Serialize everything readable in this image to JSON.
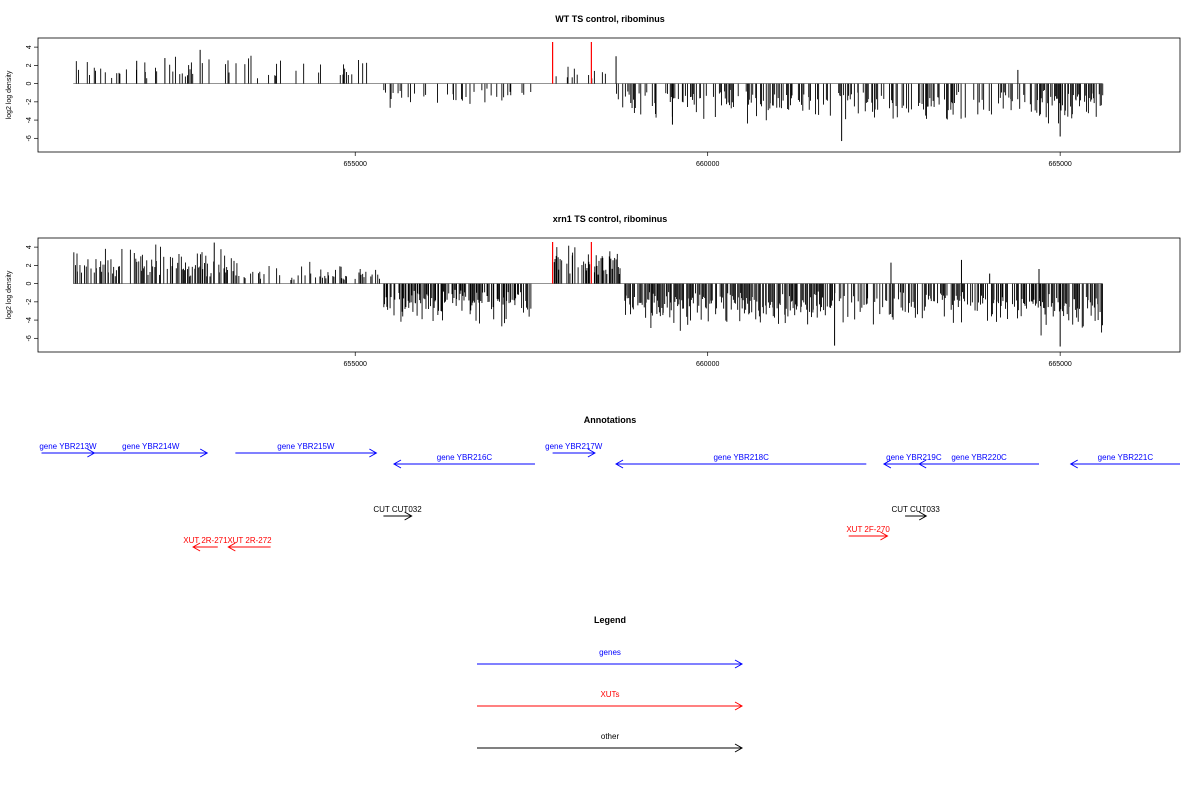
{
  "colors": {
    "gene": "#0000ff",
    "xut": "#ff0000",
    "other": "#000000",
    "marker": "#ff0000"
  },
  "chart_data": [
    {
      "type": "bar",
      "title": "WT TS control, ribominus",
      "ylabel": "log2 log density",
      "ylim": [
        -7.5,
        5
      ],
      "yticks": [
        4,
        2,
        0,
        -2,
        -4,
        -6
      ],
      "xlim": [
        650500,
        666700
      ],
      "xticks": [
        655000,
        660000,
        665000
      ],
      "markers": [
        657800,
        658350
      ],
      "generated_profile": {
        "seed": 11,
        "segments": [
          {
            "from": 651000,
            "to": 655300,
            "sign": 1,
            "density": 0.45,
            "max": 3.3
          },
          {
            "from": 655300,
            "to": 657500,
            "sign": -1,
            "density": 0.55,
            "max": 2.7
          },
          {
            "from": 657800,
            "to": 658700,
            "sign": 1,
            "density": 0.35,
            "max": 2.4
          },
          {
            "from": 658700,
            "to": 664700,
            "sign": -1,
            "density": 0.85,
            "max": 4.6
          },
          {
            "from": 664700,
            "to": 665600,
            "sign": -1,
            "density": 1.6,
            "max": 4.8
          }
        ],
        "spikes": [
          [
            651900,
            2.5
          ],
          [
            652300,
            2.8
          ],
          [
            652800,
            3.7
          ],
          [
            658700,
            3.0
          ],
          [
            664400,
            1.5
          ],
          [
            659500,
            -4.5
          ],
          [
            661900,
            -6.3
          ],
          [
            665000,
            -5.8
          ]
        ]
      }
    },
    {
      "type": "bar",
      "title": "xrn1 TS control, ribominus",
      "ylabel": "log2 log density",
      "ylim": [
        -7.5,
        5
      ],
      "yticks": [
        4,
        2,
        0,
        -2,
        -4,
        -6
      ],
      "xlim": [
        650500,
        666700
      ],
      "xticks": [
        655000,
        660000,
        665000
      ],
      "markers": [
        657800,
        658350
      ],
      "generated_profile": {
        "seed": 29,
        "segments": [
          {
            "from": 651000,
            "to": 653300,
            "sign": 1,
            "density": 1.2,
            "max": 4.6
          },
          {
            "from": 653300,
            "to": 655400,
            "sign": 1,
            "density": 0.6,
            "max": 2.6
          },
          {
            "from": 655400,
            "to": 657500,
            "sign": -1,
            "density": 1.6,
            "max": 4.8
          },
          {
            "from": 657800,
            "to": 658800,
            "sign": 1,
            "density": 1.3,
            "max": 4.8
          },
          {
            "from": 658800,
            "to": 661800,
            "sign": -1,
            "density": 1.6,
            "max": 5.5
          },
          {
            "from": 661800,
            "to": 662500,
            "sign": -1,
            "density": 0.8,
            "max": 5.2
          },
          {
            "from": 662500,
            "to": 664700,
            "sign": -1,
            "density": 1.2,
            "max": 4.8
          },
          {
            "from": 664700,
            "to": 665600,
            "sign": -1,
            "density": 1.7,
            "max": 6.2
          }
        ],
        "spikes": [
          [
            653000,
            4.5
          ],
          [
            662600,
            2.3
          ],
          [
            663600,
            2.6
          ],
          [
            664000,
            1.1
          ],
          [
            664700,
            1.6
          ],
          [
            661800,
            -6.8
          ],
          [
            665000,
            -6.9
          ]
        ]
      }
    }
  ],
  "annotations": {
    "title": "Annotations",
    "features": [
      {
        "label": "gene YBR213W",
        "start": 650550,
        "end": 651300,
        "strand": "+",
        "type": "gene",
        "row": 0
      },
      {
        "label": "gene YBR214W",
        "start": 651300,
        "end": 652900,
        "strand": "+",
        "type": "gene",
        "row": 0
      },
      {
        "label": "gene YBR215W",
        "start": 653300,
        "end": 655300,
        "strand": "+",
        "type": "gene",
        "row": 0
      },
      {
        "label": "gene YBR216C",
        "start": 655550,
        "end": 657550,
        "strand": "-",
        "type": "gene",
        "row": 1
      },
      {
        "label": "gene YBR217W",
        "start": 657800,
        "end": 658400,
        "strand": "+",
        "type": "gene",
        "row": 0
      },
      {
        "label": "gene YBR218C",
        "start": 658700,
        "end": 662250,
        "strand": "-",
        "type": "gene",
        "row": 1
      },
      {
        "label": "gene YBR219C",
        "start": 662500,
        "end": 663350,
        "strand": "-",
        "type": "gene",
        "row": 1
      },
      {
        "label": "gene YBR220C",
        "start": 663000,
        "end": 664700,
        "strand": "-",
        "type": "gene",
        "row": 1
      },
      {
        "label": "gene YBR221C",
        "start": 665150,
        "end": 666700,
        "strand": "-",
        "type": "gene",
        "row": 1
      },
      {
        "label": "CUT CUT032",
        "start": 655400,
        "end": 655800,
        "strand": "+",
        "type": "other",
        "row": 2
      },
      {
        "label": "CUT CUT033",
        "start": 662800,
        "end": 663100,
        "strand": "+",
        "type": "other",
        "row": 2
      },
      {
        "label": "XUT 2R-271",
        "start": 652700,
        "end": 653050,
        "strand": "-",
        "type": "xut",
        "row": 3
      },
      {
        "label": "XUT 2R-272",
        "start": 653200,
        "end": 653800,
        "strand": "-",
        "type": "xut",
        "row": 3
      },
      {
        "label": "XUT 2F-270",
        "start": 662000,
        "end": 662550,
        "strand": "+",
        "type": "xut",
        "row": 4
      }
    ]
  },
  "legend": {
    "title": "Legend",
    "items": [
      {
        "label": "genes",
        "type": "gene"
      },
      {
        "label": "XUTs",
        "type": "xut"
      },
      {
        "label": "other",
        "type": "other"
      }
    ]
  }
}
